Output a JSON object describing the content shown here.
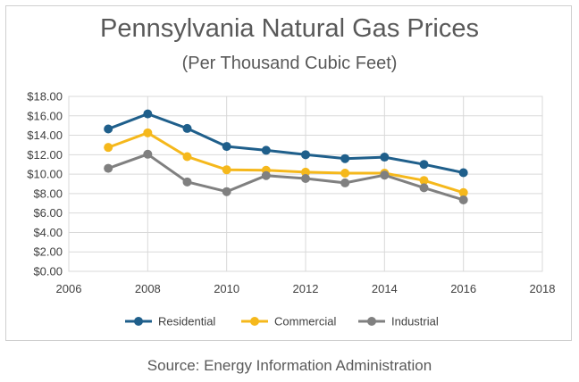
{
  "chart_data": {
    "type": "line",
    "title": "Pennsylvania Natural Gas Prices",
    "subtitle": "(Per Thousand Cubic Feet)",
    "x": [
      2007,
      2008,
      2009,
      2010,
      2011,
      2012,
      2013,
      2014,
      2015,
      2016
    ],
    "xlim": [
      2006,
      2018
    ],
    "xticks": [
      2006,
      2008,
      2010,
      2012,
      2014,
      2016,
      2018
    ],
    "ylim": [
      0,
      18
    ],
    "yticks": [
      0,
      2,
      4,
      6,
      8,
      10,
      12,
      14,
      16,
      18
    ],
    "ytick_labels": [
      "$0.00",
      "$2.00",
      "$4.00",
      "$6.00",
      "$8.00",
      "$10.00",
      "$12.00",
      "$14.00",
      "$16.00",
      "$18.00"
    ],
    "grid": true,
    "legend_position": "bottom",
    "series": [
      {
        "name": "Residential",
        "color": "#1f5f8b",
        "values": [
          14.65,
          16.2,
          14.7,
          12.85,
          12.45,
          12.0,
          11.6,
          11.75,
          11.0,
          10.15
        ]
      },
      {
        "name": "Commercial",
        "color": "#f5b81c",
        "values": [
          12.75,
          14.25,
          11.8,
          10.45,
          10.4,
          10.2,
          10.1,
          10.1,
          9.35,
          8.1
        ]
      },
      {
        "name": "Industrial",
        "color": "#808080",
        "values": [
          10.6,
          12.05,
          9.2,
          8.2,
          9.85,
          9.55,
          9.1,
          9.9,
          8.6,
          7.35
        ]
      }
    ]
  },
  "source": "Source: Energy Information Administration"
}
